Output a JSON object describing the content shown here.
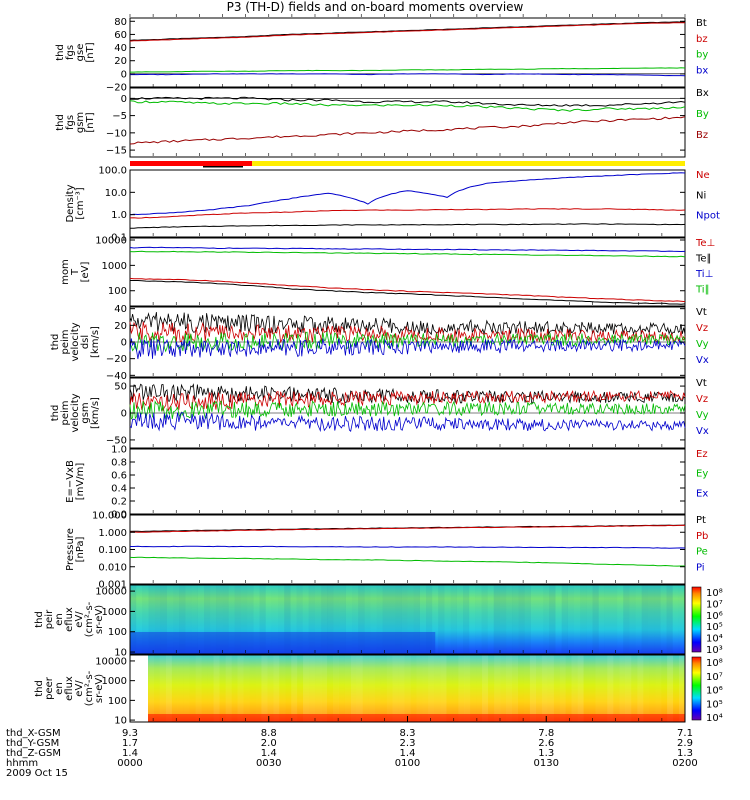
{
  "chart_data": {
    "type": "line",
    "title": "P3 (TH-D) fields and on-board moments overview",
    "panels": [
      {
        "id": "fgs-gse",
        "ylabel": [
          "thd",
          "fgs",
          "gse",
          "[nT]"
        ],
        "ylim": [
          -20,
          85
        ],
        "ticks": [
          "80",
          "60",
          "40",
          "20",
          "0",
          "−20"
        ],
        "tickvals": [
          80,
          60,
          40,
          20,
          0,
          -20
        ],
        "legend": [
          "Bt",
          "bz",
          "by",
          "bx"
        ],
        "legend_colors": [
          "#000000",
          "#cc0000",
          "#00bb00",
          "#0000cc"
        ],
        "series": [
          {
            "name": "Bt",
            "color": "#000000",
            "values": [
              51,
              53,
              55,
              57,
              60,
              62,
              64,
              66,
              68,
              70,
              72,
              74,
              76,
              78,
              79
            ]
          },
          {
            "name": "bz",
            "color": "#cc0000",
            "values": [
              50,
              52,
              54,
              56,
              59,
              61,
              63,
              65,
              67,
              69,
              71,
              73,
              75,
              77,
              78
            ]
          },
          {
            "name": "by",
            "color": "#00bb00",
            "values": [
              3,
              3,
              4,
              4,
              5,
              5,
              5,
              6,
              6,
              7,
              7,
              8,
              8,
              9,
              9
            ]
          },
          {
            "name": "bx",
            "color": "#0000cc",
            "values": [
              -1,
              -1,
              0,
              0,
              0,
              0,
              -1,
              0,
              0,
              -1,
              0,
              -1,
              -1,
              -2,
              -3
            ]
          }
        ]
      },
      {
        "id": "fgs-gsm",
        "ylabel": [
          "thd",
          "fgs",
          "gsm",
          "[nT]"
        ],
        "ylim": [
          -17,
          3
        ],
        "ticks": [
          "0",
          "−5",
          "−10",
          "−15"
        ],
        "tickvals": [
          0,
          -5,
          -10,
          -15
        ],
        "legend": [
          "Bx",
          "By",
          "Bz"
        ],
        "legend_colors": [
          "#000000",
          "#00bb00",
          "#990000"
        ],
        "series": [
          {
            "name": "Bx",
            "color": "#000000",
            "values": [
              0,
              0,
              0,
              0,
              -0.5,
              -0.5,
              -1,
              -1,
              -1,
              -1.5,
              -2,
              -2,
              -2,
              -1.5,
              -1
            ]
          },
          {
            "name": "By",
            "color": "#00bb00",
            "values": [
              -1,
              -1,
              -1.5,
              -1.5,
              -1.5,
              -2,
              -2,
              -2,
              -2,
              -2.5,
              -3,
              -3.5,
              -3,
              -3,
              -2.5
            ]
          },
          {
            "name": "Bz",
            "color": "#990000",
            "values": [
              -13,
              -12.5,
              -12,
              -11.5,
              -11,
              -10.5,
              -10,
              -9.5,
              -9,
              -8.5,
              -8,
              -7,
              -6.5,
              -6,
              -5.5
            ]
          }
        ]
      },
      {
        "id": "density",
        "ylabel": [
          "Density",
          "[cm⁻³]"
        ],
        "log": true,
        "ylim": [
          0.1,
          100
        ],
        "ticks": [
          "100.0",
          "10.0",
          "1.0",
          "0.1"
        ],
        "tickvals": [
          100,
          10,
          1,
          0.1
        ],
        "legend": [
          "Ne",
          "Ni",
          "Npot"
        ],
        "legend_colors": [
          "#cc0000",
          "#000000",
          "#0000cc"
        ],
        "series": [
          {
            "name": "Ne",
            "color": "#cc0000",
            "values": [
              0.7,
              0.8,
              1.0,
              1.2,
              1.3,
              1.5,
              1.6,
              1.6,
              1.7,
              1.7,
              1.8,
              1.8,
              1.8,
              1.7,
              1.6
            ]
          },
          {
            "name": "Ni",
            "color": "#000000",
            "values": [
              0.25,
              0.28,
              0.3,
              0.32,
              0.33,
              0.34,
              0.35,
              0.35,
              0.36,
              0.36,
              0.37,
              0.38,
              0.38,
              0.37,
              0.36
            ]
          },
          {
            "name": "Npot",
            "color": "#0000cc",
            "values": [
              1.0,
              1.2,
              1.6,
              2.5,
              5,
              9,
              3,
              12,
              6,
              25,
              35,
              45,
              55,
              65,
              75
            ]
          }
        ]
      },
      {
        "id": "moments-temp",
        "ylabel": [
          "mom",
          "T",
          "[eV]"
        ],
        "log": true,
        "ylim": [
          25,
          12000
        ],
        "ticks": [
          "10000",
          "1000",
          "100"
        ],
        "tickvals": [
          10000,
          1000,
          100
        ],
        "legend": [
          "Te⊥",
          "Te∥",
          "Ti⊥",
          "Ti∥"
        ],
        "legend_colors": [
          "#cc0000",
          "#000000",
          "#0000cc",
          "#00bb00"
        ],
        "series": [
          {
            "name": "Te⊥",
            "color": "#cc0000",
            "values": [
              300,
              280,
              250,
              200,
              160,
              130,
              110,
              95,
              85,
              75,
              65,
              55,
              48,
              42,
              38
            ]
          },
          {
            "name": "Te∥",
            "color": "#000000",
            "values": [
              250,
              230,
              200,
              160,
              120,
              100,
              85,
              75,
              65,
              55,
              48,
              40,
              35,
              32,
              30
            ]
          },
          {
            "name": "Ti⊥",
            "color": "#0000cc",
            "values": [
              5000,
              5000,
              4800,
              4700,
              4600,
              4500,
              4400,
              4300,
              4200,
              4100,
              4000,
              3900,
              3800,
              3700,
              3600
            ]
          },
          {
            "name": "Ti∥",
            "color": "#00bb00",
            "values": [
              3500,
              3500,
              3400,
              3300,
              3200,
              3100,
              3000,
              2900,
              2800,
              2700,
              2600,
              2500,
              2400,
              2300,
              2200
            ]
          }
        ]
      },
      {
        "id": "peim-dsl",
        "ylabel": [
          "thd",
          "peim",
          "velocity",
          "dsl",
          "[km/s]"
        ],
        "ylim": [
          -42,
          42
        ],
        "ticks": [
          "40",
          "20",
          "0",
          "−20",
          "−40"
        ],
        "tickvals": [
          40,
          20,
          0,
          -20,
          -40
        ],
        "legend": [
          "Vt",
          "Vz",
          "Vy",
          "Vx"
        ],
        "legend_colors": [
          "#000000",
          "#cc0000",
          "#00bb00",
          "#0000cc"
        ],
        "series": [
          {
            "name": "Vt",
            "color": "#000000",
            "values": [
              25,
              24,
              23,
              22,
              21,
              20,
              19,
              19,
              18,
              18,
              17,
              17,
              16,
              16,
              15
            ]
          },
          {
            "name": "Vz",
            "color": "#cc0000",
            "values": [
              12,
              12,
              11,
              11,
              10,
              10,
              9,
              9,
              9,
              8,
              8,
              8,
              7,
              7,
              7
            ]
          },
          {
            "name": "Vy",
            "color": "#00bb00",
            "values": [
              0,
              0,
              1,
              1,
              1,
              2,
              2,
              2,
              2,
              2,
              3,
              3,
              3,
              3,
              3
            ]
          },
          {
            "name": "Vx",
            "color": "#0000cc",
            "values": [
              -8,
              -8,
              -7,
              -7,
              -7,
              -6,
              -6,
              -6,
              -5,
              -5,
              -5,
              -5,
              -4,
              -4,
              -4
            ]
          }
        ]
      },
      {
        "id": "peim-gsm",
        "ylabel": [
          "thd",
          "peim",
          "velocity",
          "gsm",
          "[km/s]"
        ],
        "ylim": [
          -65,
          65
        ],
        "ticks": [
          "50",
          "0",
          "−50"
        ],
        "tickvals": [
          50,
          0,
          -50
        ],
        "legend": [
          "Vt",
          "Vz",
          "Vy",
          "Vx"
        ],
        "legend_colors": [
          "#000000",
          "#cc0000",
          "#00bb00",
          "#0000cc"
        ],
        "series": [
          {
            "name": "Vt",
            "color": "#000000",
            "values": [
              40,
              38,
              36,
              35,
              34,
              33,
              32,
              32,
              31,
              31,
              30,
              30,
              29,
              29,
              28
            ]
          },
          {
            "name": "Vz",
            "color": "#cc0000",
            "values": [
              20,
              20,
              22,
              24,
              25,
              26,
              27,
              28,
              28,
              29,
              30,
              30,
              31,
              31,
              32
            ]
          },
          {
            "name": "Vy",
            "color": "#00bb00",
            "values": [
              5,
              5,
              6,
              6,
              7,
              7,
              7,
              8,
              8,
              8,
              8,
              8,
              8,
              8,
              8
            ]
          },
          {
            "name": "Vx",
            "color": "#0000cc",
            "values": [
              -15,
              -15,
              -16,
              -17,
              -18,
              -19,
              -20,
              -20,
              -21,
              -21,
              -22,
              -22,
              -22,
              -23,
              -23
            ]
          }
        ]
      },
      {
        "id": "efield",
        "ylabel": [
          "E=−VxB",
          "[mV/m]"
        ],
        "ylim": [
          0,
          1
        ],
        "ticks": [
          "1.0",
          "0.8",
          "0.6",
          "0.4",
          "0.2",
          "0.0"
        ],
        "tickvals": [
          1.0,
          0.8,
          0.6,
          0.4,
          0.2,
          0.0
        ],
        "legend": [
          "Ez",
          "Ey",
          "Ex"
        ],
        "legend_colors": [
          "#cc0000",
          "#00bb00",
          "#0000cc"
        ],
        "series": []
      },
      {
        "id": "pressure",
        "ylabel": [
          "Pressure",
          "[nPa]"
        ],
        "log": true,
        "ylim": [
          0.001,
          10
        ],
        "ticks": [
          "10.000",
          "1.000",
          "0.100",
          "0.010",
          "0.001"
        ],
        "tickvals": [
          10,
          1,
          0.1,
          0.01,
          0.001
        ],
        "legend": [
          "Pt",
          "Pb",
          "Pe",
          "Pi"
        ],
        "legend_colors": [
          "#000000",
          "#cc0000",
          "#00bb00",
          "#0000cc"
        ],
        "series": [
          {
            "name": "Pt",
            "color": "#000000",
            "values": [
              1.1,
              1.2,
              1.3,
              1.4,
              1.5,
              1.6,
              1.7,
              1.8,
              1.9,
              2.0,
              2.1,
              2.2,
              2.3,
              2.5,
              2.6
            ]
          },
          {
            "name": "Pb",
            "color": "#cc0000",
            "values": [
              1.0,
              1.1,
              1.2,
              1.3,
              1.4,
              1.5,
              1.6,
              1.7,
              1.8,
              1.9,
              2.0,
              2.1,
              2.2,
              2.4,
              2.5
            ]
          },
          {
            "name": "Pe",
            "color": "#00bb00",
            "values": [
              0.035,
              0.033,
              0.031,
              0.03,
              0.028,
              0.026,
              0.025,
              0.023,
              0.021,
              0.02,
              0.018,
              0.016,
              0.014,
              0.012,
              0.011
            ]
          },
          {
            "name": "Pi",
            "color": "#0000cc",
            "values": [
              0.15,
              0.15,
              0.15,
              0.15,
              0.145,
              0.145,
              0.14,
              0.14,
              0.14,
              0.135,
              0.135,
              0.13,
              0.13,
              0.125,
              0.12
            ]
          }
        ]
      }
    ],
    "spectrograms": [
      {
        "id": "peir",
        "ylabel": [
          "thd",
          "peir",
          "en",
          "eflux",
          "eV/",
          "(cm²-s-",
          "sr-eV)"
        ],
        "ticks": [
          "10000",
          "1000",
          "100",
          "10"
        ],
        "tickvals": [
          10000,
          1000,
          100,
          10
        ],
        "colorbar_ticks": [
          "10⁸",
          "10⁷",
          "10⁶",
          "10⁵",
          "10⁴",
          "10³"
        ]
      },
      {
        "id": "peer",
        "ylabel": [
          "thd",
          "peer",
          "en",
          "eflux",
          "eV/",
          "(cm²-s-",
          "sr-eV)"
        ],
        "ticks": [
          "10000",
          "1000",
          "100",
          "10"
        ],
        "tickvals": [
          10000,
          1000,
          100,
          10
        ],
        "colorbar_ticks": [
          "10⁸",
          "10⁷",
          "10⁶",
          "10⁵",
          "10⁴"
        ]
      }
    ],
    "x_axis": {
      "row_labels": [
        "thd_X-GSM",
        "thd_Y-GSM",
        "thd_Z-GSM",
        "hhmm",
        "2009 Oct 15"
      ],
      "columns": [
        {
          "x_gsm": "9.3",
          "y_gsm": "1.7",
          "z_gsm": "1.4",
          "hhmm": "0000"
        },
        {
          "x_gsm": "8.8",
          "y_gsm": "2.0",
          "z_gsm": "1.4",
          "hhmm": "0030"
        },
        {
          "x_gsm": "8.3",
          "y_gsm": "2.3",
          "z_gsm": "1.4",
          "hhmm": "0100"
        },
        {
          "x_gsm": "7.8",
          "y_gsm": "2.6",
          "z_gsm": "1.3",
          "hhmm": "0130"
        },
        {
          "x_gsm": "7.1",
          "y_gsm": "2.9",
          "z_gsm": "1.3",
          "hhmm": "0200"
        }
      ]
    },
    "mode_bar": {
      "colors": [
        "#ff0000",
        "#ffee00"
      ],
      "split_fraction": 0.22
    }
  }
}
